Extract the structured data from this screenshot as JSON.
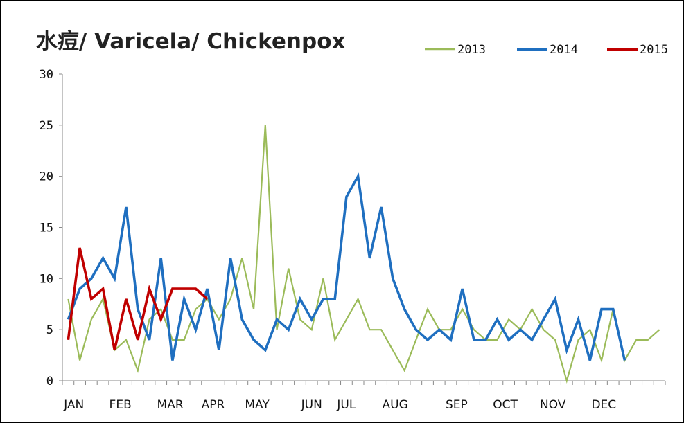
{
  "chart_data": {
    "type": "line",
    "title": "水痘/ Varicela/ Chickenpox",
    "xlabel": "",
    "ylabel": "",
    "ylim": [
      0,
      30
    ],
    "yticks": [
      0,
      5,
      10,
      15,
      20,
      25,
      30
    ],
    "x_unit": "week",
    "xlim": [
      1,
      52
    ],
    "month_labels": [
      "JAN",
      "FEB",
      "MAR",
      "APR",
      "MAY",
      "JUN",
      "JUL",
      "AUG",
      "SEP",
      "OCT",
      "NOV",
      "DEC"
    ],
    "month_label_weeks": [
      1.5,
      5.5,
      9.8,
      13.5,
      17.3,
      22,
      25,
      29.2,
      34.5,
      38.7,
      42.8,
      47.2
    ],
    "grid": false,
    "legend_position": "top-right",
    "series": [
      {
        "name": "2013",
        "color": "#9bbb59",
        "values": [
          8,
          2,
          6,
          8,
          3,
          4,
          1,
          6,
          7,
          4,
          4,
          7,
          8,
          6,
          8,
          12,
          7,
          25,
          5,
          11,
          6,
          5,
          10,
          4,
          6,
          8,
          5,
          5,
          3,
          1,
          4,
          7,
          5,
          5,
          7,
          5,
          4,
          4,
          6,
          5,
          7,
          5,
          4,
          0,
          4,
          5,
          2,
          7,
          2,
          4,
          4,
          5
        ]
      },
      {
        "name": "2014",
        "color": "#1f6fc0",
        "values": [
          6,
          9,
          10,
          12,
          10,
          17,
          7,
          4,
          12,
          2,
          8,
          5,
          9,
          3,
          12,
          6,
          4,
          3,
          6,
          5,
          8,
          6,
          8,
          8,
          18,
          20,
          12,
          17,
          10,
          7,
          5,
          4,
          5,
          4,
          9,
          4,
          4,
          6,
          4,
          5,
          4,
          6,
          8,
          3,
          6,
          2,
          7,
          7,
          2
        ]
      },
      {
        "name": "2015",
        "color": "#c00000",
        "values": [
          4,
          13,
          8,
          9,
          3,
          8,
          4,
          9,
          6,
          9,
          9,
          9,
          8
        ]
      }
    ]
  }
}
